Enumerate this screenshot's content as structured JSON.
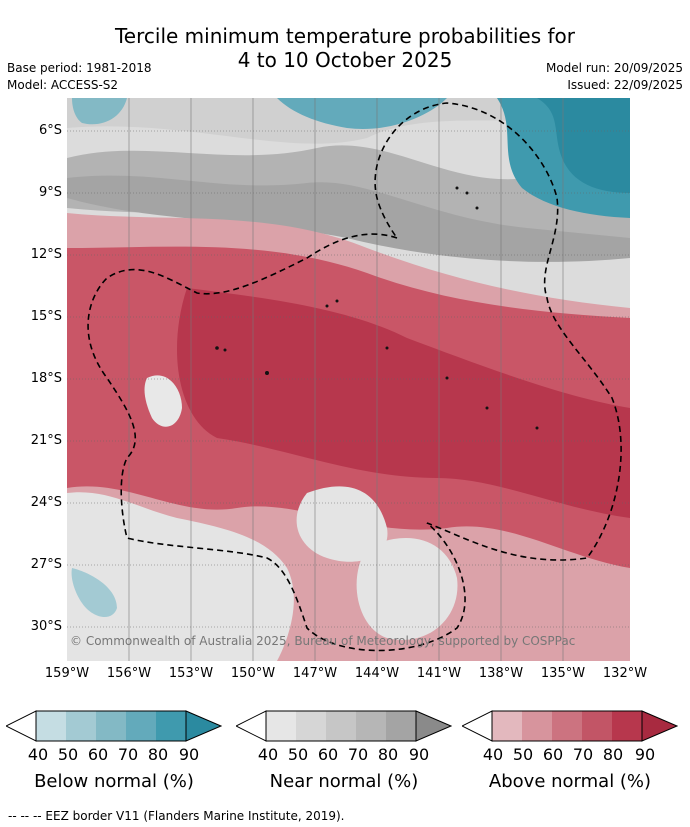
{
  "title_line1": "Tercile minimum temperature probabilities for",
  "title_line2": "4 to 10 October 2025",
  "base_period": "Base period: 1981-2018",
  "model": "Model: ACCESS-S2",
  "model_run": "Model run: 20/09/2025",
  "issued": "Issued: 22/09/2025",
  "copyright": "© Commonwealth of Australia 2025, Bureau of Meteorology, supported by COSPPac",
  "lat_labels": [
    "6°S",
    "9°S",
    "12°S",
    "15°S",
    "18°S",
    "21°S",
    "24°S",
    "27°S",
    "30°S"
  ],
  "lon_labels": [
    "159°W",
    "156°W",
    "153°W",
    "150°W",
    "147°W",
    "144°W",
    "141°W",
    "138°W",
    "135°W",
    "132°W"
  ],
  "colorbars": [
    {
      "title": "Below normal (%)",
      "ticks": [
        "40",
        "50",
        "60",
        "70",
        "80",
        "90"
      ],
      "colors": [
        "#c5dde3",
        "#a3cad3",
        "#83b9c5",
        "#63aabb",
        "#3f9aae",
        "#2b8aa0"
      ]
    },
    {
      "title": "Near normal (%)",
      "ticks": [
        "40",
        "50",
        "60",
        "70",
        "80",
        "90"
      ],
      "colors": [
        "#e6e6e6",
        "#d6d6d6",
        "#c6c6c6",
        "#b6b6b6",
        "#a4a4a4",
        "#8a8a8a"
      ]
    },
    {
      "title": "Above normal (%)",
      "ticks": [
        "40",
        "50",
        "60",
        "70",
        "80",
        "90"
      ],
      "colors": [
        "#e3b8be",
        "#d7949d",
        "#cc7380",
        "#c25566",
        "#b7374d",
        "#a82a40"
      ]
    }
  ],
  "footer": "--  --  -- EEZ border V11 (Flanders Marine Institute, 2019).",
  "colors": {
    "above_dark": "#b7374d",
    "above_mid": "#c95667",
    "above_light": "#dba2a9",
    "near_light": "#e4e4e4",
    "near_mid": "#c9c9c9",
    "near_dark": "#a7a7a7",
    "below": "#3f9aae"
  }
}
